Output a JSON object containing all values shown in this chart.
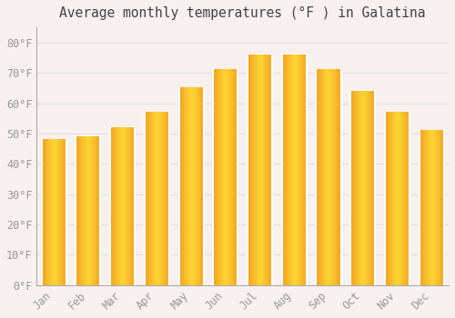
{
  "title": "Average monthly temperatures (°F ) in Galatina",
  "months": [
    "Jan",
    "Feb",
    "Mar",
    "Apr",
    "May",
    "Jun",
    "Jul",
    "Aug",
    "Sep",
    "Oct",
    "Nov",
    "Dec"
  ],
  "values": [
    48,
    49,
    52,
    57,
    65,
    71,
    76,
    76,
    71,
    64,
    57,
    51
  ],
  "bar_color_center": "#FDD835",
  "bar_color_edge": "#F5A623",
  "background_color": "#F9F0F0",
  "grid_color": "#E0E0E0",
  "tick_label_color": "#999999",
  "title_color": "#444444",
  "ylim": [
    0,
    85
  ],
  "yticks": [
    0,
    10,
    20,
    30,
    40,
    50,
    60,
    70,
    80
  ],
  "ytick_labels": [
    "0°F",
    "10°F",
    "20°F",
    "30°F",
    "40°F",
    "50°F",
    "60°F",
    "70°F",
    "80°F"
  ],
  "title_fontsize": 10.5,
  "tick_fontsize": 8.5,
  "bar_width": 0.72,
  "figsize": [
    5.0,
    3.5
  ],
  "dpi": 100
}
